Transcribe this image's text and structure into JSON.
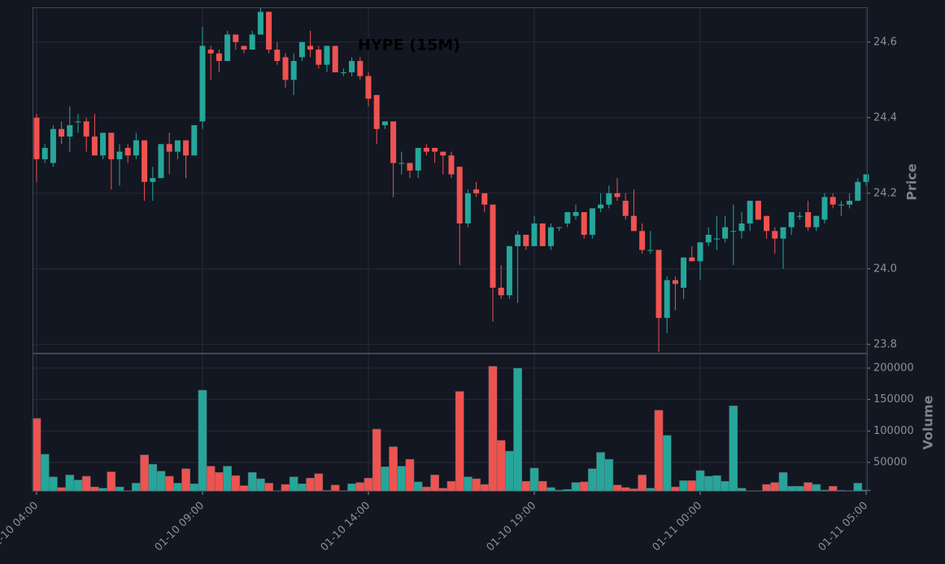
{
  "chart_data": {
    "type": "candlestick",
    "title": "HYPE (15M)",
    "ylabel": "Price",
    "vlabel": "Volume",
    "up_color": "#26a69a",
    "down_color": "#ef5350",
    "grid": true,
    "categories": [
      "01-10 04:00",
      null,
      null,
      null,
      null,
      null,
      null,
      null,
      null,
      null,
      null,
      null,
      null,
      null,
      null,
      null,
      null,
      null,
      null,
      null,
      "01-10 09:00",
      null,
      null,
      null,
      null,
      null,
      null,
      null,
      null,
      null,
      null,
      null,
      null,
      null,
      null,
      null,
      null,
      null,
      null,
      null,
      "01-10 14:00",
      null,
      null,
      null,
      null,
      null,
      null,
      null,
      null,
      null,
      null,
      null,
      null,
      null,
      null,
      null,
      null,
      null,
      null,
      null,
      "01-10 19:00",
      null,
      null,
      null,
      null,
      null,
      null,
      null,
      null,
      null,
      null,
      null,
      null,
      null,
      null,
      null,
      null,
      null,
      null,
      null,
      "01-11 00:00",
      null,
      null,
      null,
      null,
      null,
      null,
      null,
      null,
      null,
      null,
      null,
      null,
      null,
      null,
      null,
      null,
      null,
      null,
      null,
      "01-11 05:00"
    ],
    "open": [
      24.4,
      24.29,
      24.28,
      24.37,
      24.35,
      24.39,
      24.39,
      24.35,
      24.3,
      24.36,
      24.29,
      24.32,
      24.3,
      24.34,
      24.23,
      24.24,
      24.33,
      24.31,
      24.34,
      24.3,
      24.39,
      24.58,
      24.57,
      24.55,
      24.62,
      24.59,
      24.58,
      24.62,
      24.68,
      24.58,
      24.56,
      24.5,
      24.56,
      24.59,
      24.58,
      24.54,
      24.59,
      24.52,
      24.52,
      24.55,
      24.51,
      24.46,
      24.38,
      24.39,
      24.28,
      24.28,
      24.26,
      24.32,
      24.32,
      24.31,
      24.3,
      24.27,
      24.12,
      24.21,
      24.2,
      24.17,
      23.95,
      23.93,
      24.06,
      24.09,
      24.06,
      24.12,
      24.06,
      24.11,
      24.12,
      24.14,
      24.15,
      24.09,
      24.16,
      24.17,
      24.2,
      24.18,
      24.14,
      24.1,
      24.05,
      24.05,
      23.87,
      23.97,
      23.95,
      24.03,
      24.02,
      24.07,
      24.08,
      24.08,
      24.1,
      24.1,
      24.12,
      24.18,
      24.14,
      24.1,
      24.08,
      24.11,
      24.14,
      24.15,
      24.11,
      24.13,
      24.19,
      24.17,
      24.17,
      24.18,
      24.23
    ],
    "high": [
      24.41,
      24.33,
      24.38,
      24.39,
      24.43,
      24.41,
      24.4,
      24.41,
      24.36,
      24.36,
      24.33,
      24.33,
      24.36,
      24.34,
      24.27,
      24.33,
      24.36,
      24.34,
      24.34,
      24.38,
      24.64,
      24.59,
      24.58,
      24.63,
      24.62,
      24.59,
      24.63,
      24.69,
      24.68,
      24.6,
      24.57,
      24.57,
      24.6,
      24.63,
      24.59,
      24.59,
      24.59,
      24.53,
      24.56,
      24.56,
      24.52,
      24.46,
      24.39,
      24.39,
      24.31,
      24.28,
      24.32,
      24.33,
      24.32,
      24.31,
      24.31,
      24.27,
      24.21,
      24.23,
      24.2,
      24.17,
      24.01,
      24.06,
      24.1,
      24.09,
      24.14,
      24.12,
      24.12,
      24.11,
      24.15,
      24.17,
      24.15,
      24.16,
      24.2,
      24.22,
      24.24,
      24.2,
      24.21,
      24.12,
      24.1,
      24.05,
      23.98,
      23.98,
      24.03,
      24.06,
      24.07,
      24.11,
      24.14,
      24.14,
      24.17,
      24.15,
      24.18,
      24.18,
      24.14,
      24.11,
      24.11,
      24.15,
      24.15,
      24.18,
      24.14,
      24.2,
      24.2,
      24.18,
      24.2,
      24.24,
      24.25
    ],
    "low": [
      24.23,
      24.28,
      24.27,
      24.33,
      24.31,
      24.36,
      24.31,
      24.3,
      24.29,
      24.21,
      24.22,
      24.28,
      24.29,
      24.18,
      24.18,
      24.24,
      24.25,
      24.29,
      24.24,
      24.3,
      24.37,
      24.5,
      24.52,
      24.55,
      24.58,
      24.57,
      24.58,
      24.62,
      24.57,
      24.54,
      24.48,
      24.46,
      24.55,
      24.56,
      24.53,
      24.52,
      24.52,
      24.51,
      24.51,
      24.5,
      24.43,
      24.33,
      24.37,
      24.19,
      24.25,
      24.24,
      24.24,
      24.3,
      24.28,
      24.25,
      24.24,
      24.01,
      24.11,
      24.19,
      24.15,
      23.86,
      23.92,
      23.92,
      23.91,
      24.05,
      24.06,
      24.06,
      24.05,
      24.1,
      24.11,
      24.13,
      24.08,
      24.08,
      24.15,
      24.16,
      24.18,
      24.13,
      24.1,
      24.04,
      24.04,
      23.78,
      23.83,
      23.89,
      23.92,
      24.02,
      23.97,
      24.06,
      24.05,
      24.07,
      24.01,
      24.08,
      24.1,
      24.13,
      24.08,
      24.04,
      24.0,
      24.09,
      24.13,
      24.1,
      24.1,
      24.12,
      24.16,
      24.14,
      24.16,
      24.18,
      24.22
    ],
    "close": [
      24.29,
      24.32,
      24.37,
      24.35,
      24.38,
      24.39,
      24.35,
      24.3,
      24.36,
      24.29,
      24.31,
      24.3,
      24.34,
      24.23,
      24.24,
      24.33,
      24.31,
      24.34,
      24.3,
      24.38,
      24.59,
      24.57,
      24.55,
      24.62,
      24.6,
      24.58,
      24.62,
      24.68,
      24.58,
      24.55,
      24.5,
      24.55,
      24.6,
      24.58,
      24.54,
      24.59,
      24.52,
      24.52,
      24.55,
      24.51,
      24.45,
      24.37,
      24.39,
      24.28,
      24.28,
      24.26,
      24.32,
      24.31,
      24.31,
      24.3,
      24.25,
      24.12,
      24.2,
      24.2,
      24.17,
      23.95,
      23.93,
      24.06,
      24.09,
      24.06,
      24.12,
      24.06,
      24.11,
      24.11,
      24.15,
      24.15,
      24.09,
      24.16,
      24.17,
      24.2,
      24.19,
      24.14,
      24.1,
      24.05,
      24.05,
      23.87,
      23.97,
      23.96,
      24.03,
      24.02,
      24.07,
      24.09,
      24.08,
      24.11,
      24.1,
      24.12,
      24.18,
      24.13,
      24.1,
      24.08,
      24.11,
      24.15,
      24.14,
      24.11,
      24.14,
      24.19,
      24.17,
      24.17,
      24.18,
      24.23,
      24.25
    ],
    "volume": [
      120000,
      63000,
      27000,
      10000,
      30000,
      22000,
      28000,
      11000,
      9000,
      35000,
      11000,
      5000,
      17000,
      62000,
      47000,
      36000,
      28000,
      17000,
      40000,
      16000,
      165000,
      44000,
      34000,
      44000,
      29000,
      13000,
      34000,
      24000,
      17000,
      5000,
      15000,
      27000,
      16000,
      25000,
      32000,
      5500,
      14000,
      5000,
      16000,
      18000,
      25000,
      103000,
      43000,
      75000,
      44000,
      55000,
      19000,
      11000,
      30000,
      9000,
      20000,
      163000,
      27000,
      24000,
      15000,
      203000,
      85000,
      68000,
      200000,
      20000,
      41000,
      20000,
      10000,
      6000,
      7000,
      18000,
      19000,
      40000,
      66000,
      55000,
      14000,
      10000,
      8000,
      30000,
      9000,
      133000,
      93000,
      11000,
      21000,
      21000,
      37000,
      28000,
      29000,
      20000,
      140000,
      9000,
      4800,
      5000,
      15000,
      18000,
      34000,
      12000,
      12000,
      18000,
      15000,
      6000,
      12000,
      5500,
      5000,
      17000,
      6000
    ],
    "ylim": [
      23.778,
      24.692
    ],
    "yticks": [
      23.8,
      {
        "value": 24.0,
        "label": "24.0"
      },
      24.2,
      24.4,
      24.6
    ],
    "vlim": [
      4700,
      223300
    ],
    "vticks": [
      50000,
      100000,
      150000,
      200000
    ]
  }
}
